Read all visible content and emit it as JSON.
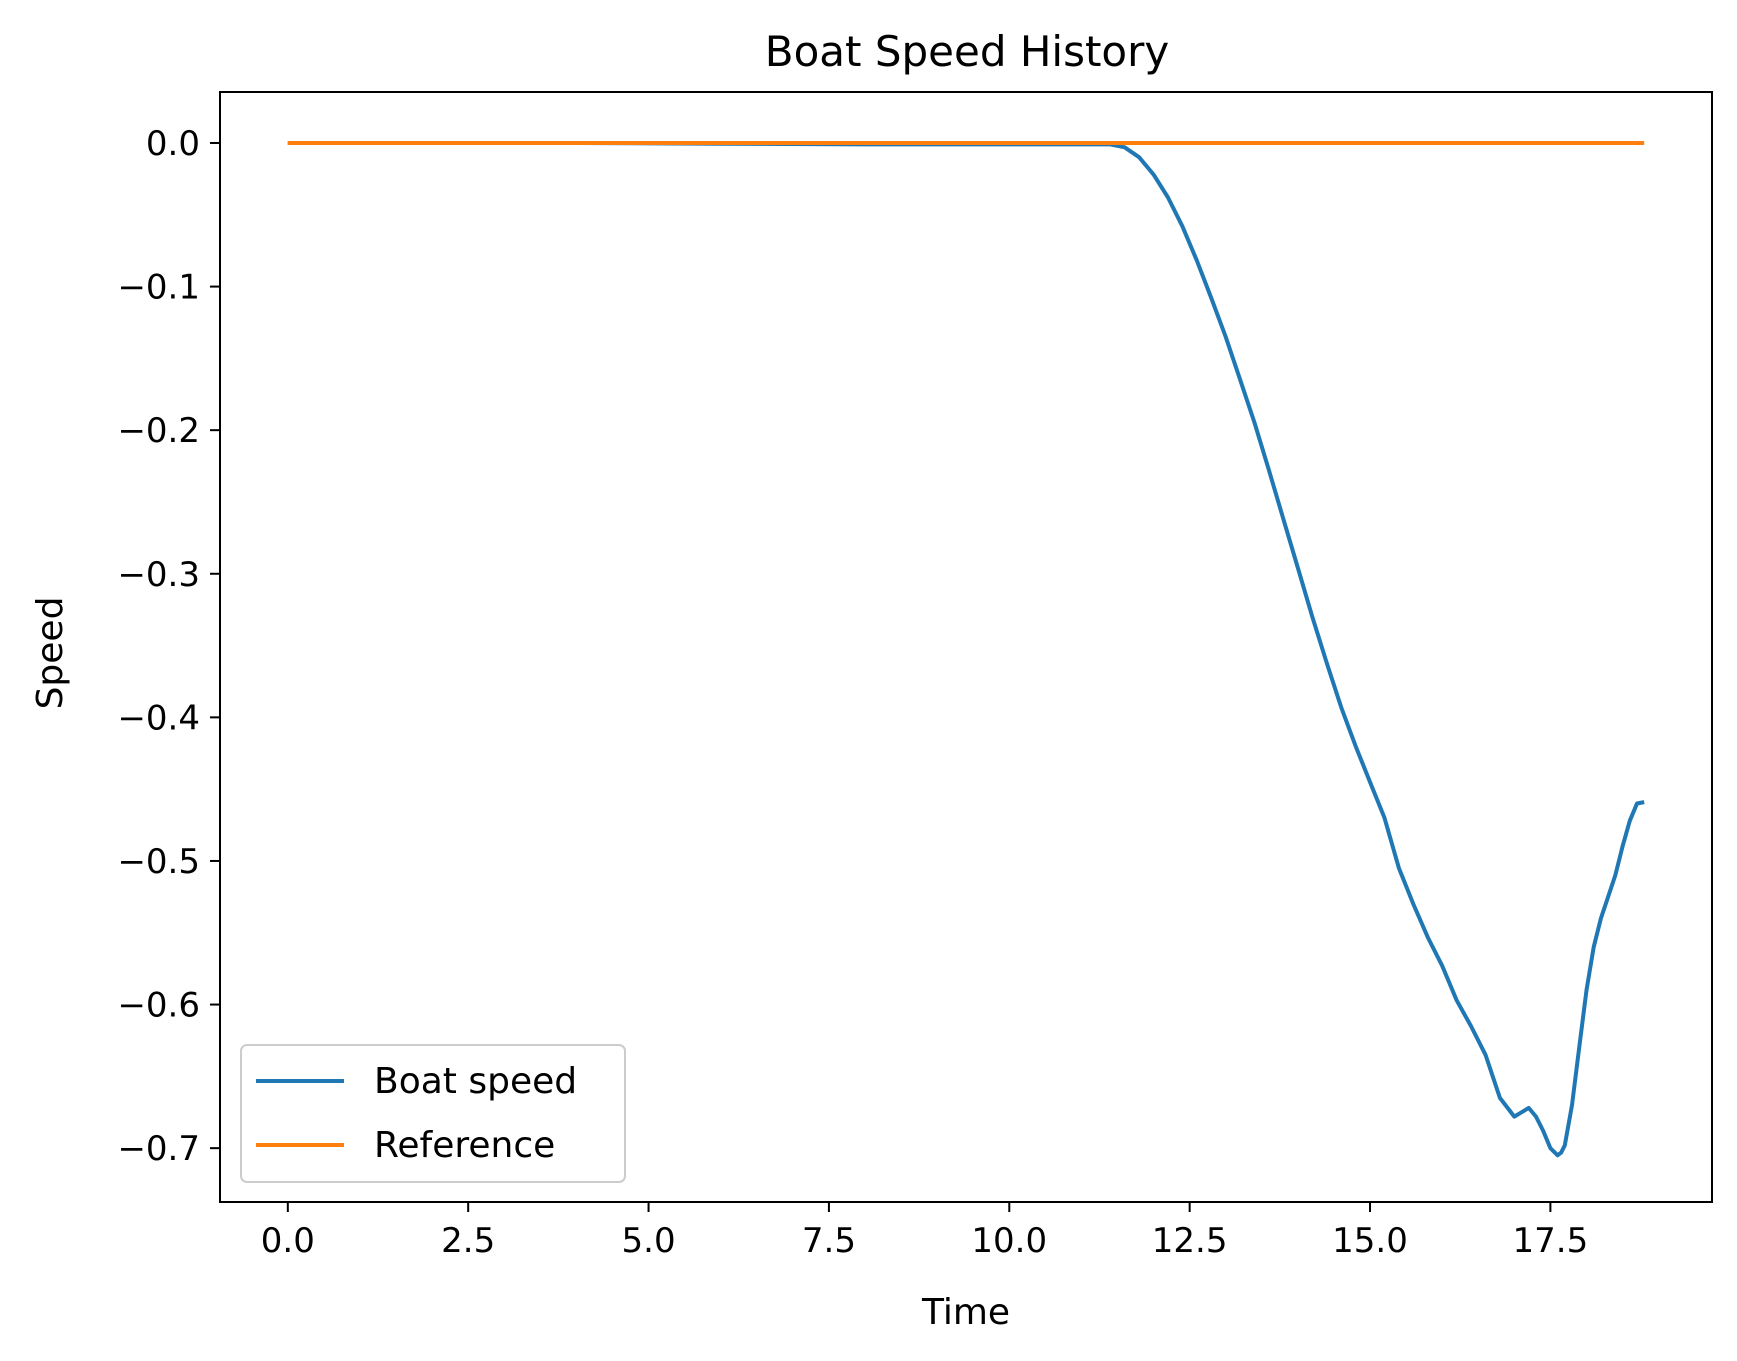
{
  "chart_data": {
    "type": "line",
    "title": "Boat Speed History",
    "xlabel": "Time",
    "ylabel": "Speed",
    "xlim": [
      -0.94,
      19.74
    ],
    "ylim": [
      -0.7375,
      0.0355
    ],
    "xticks": [
      0.0,
      2.5,
      5.0,
      7.5,
      10.0,
      12.5,
      15.0,
      17.5
    ],
    "xtick_labels": [
      "0.0",
      "2.5",
      "5.0",
      "7.5",
      "10.0",
      "12.5",
      "15.0",
      "17.5"
    ],
    "yticks": [
      0.0,
      -0.1,
      -0.2,
      -0.3,
      -0.4,
      -0.5,
      -0.6,
      -0.7
    ],
    "ytick_labels": [
      "0.0",
      "−0.1",
      "−0.2",
      "−0.3",
      "−0.4",
      "−0.5",
      "−0.6",
      "−0.7"
    ],
    "grid": false,
    "legend_position": "lower-left",
    "series": [
      {
        "name": "Boat speed",
        "color": "#1f77b4",
        "x": [
          0.0,
          2.0,
          4.0,
          6.0,
          8.0,
          10.0,
          11.0,
          11.4,
          11.6,
          11.8,
          12.0,
          12.2,
          12.4,
          12.6,
          12.8,
          13.0,
          13.2,
          13.4,
          13.6,
          13.8,
          14.0,
          14.2,
          14.4,
          14.6,
          14.8,
          15.0,
          15.2,
          15.4,
          15.6,
          15.8,
          16.0,
          16.2,
          16.4,
          16.6,
          16.8,
          17.0,
          17.1,
          17.2,
          17.3,
          17.4,
          17.5,
          17.6,
          17.65,
          17.7,
          17.8,
          17.9,
          18.0,
          18.1,
          18.2,
          18.3,
          18.4,
          18.5,
          18.6,
          18.7,
          18.8
        ],
        "y": [
          0.0,
          0.0,
          0.0,
          -0.0005,
          -0.001,
          -0.001,
          -0.001,
          -0.001,
          -0.003,
          -0.01,
          -0.022,
          -0.038,
          -0.058,
          -0.082,
          -0.108,
          -0.135,
          -0.165,
          -0.195,
          -0.228,
          -0.262,
          -0.296,
          -0.33,
          -0.362,
          -0.393,
          -0.42,
          -0.445,
          -0.47,
          -0.505,
          -0.53,
          -0.553,
          -0.573,
          -0.597,
          -0.615,
          -0.635,
          -0.665,
          -0.678,
          -0.675,
          -0.672,
          -0.678,
          -0.688,
          -0.7,
          -0.705,
          -0.703,
          -0.698,
          -0.67,
          -0.63,
          -0.59,
          -0.56,
          -0.54,
          -0.525,
          -0.51,
          -0.49,
          -0.472,
          -0.46,
          -0.459
        ]
      },
      {
        "name": "Reference",
        "color": "#ff7f0e",
        "x": [
          0.0,
          18.8
        ],
        "y": [
          0.0,
          0.0
        ]
      }
    ]
  }
}
